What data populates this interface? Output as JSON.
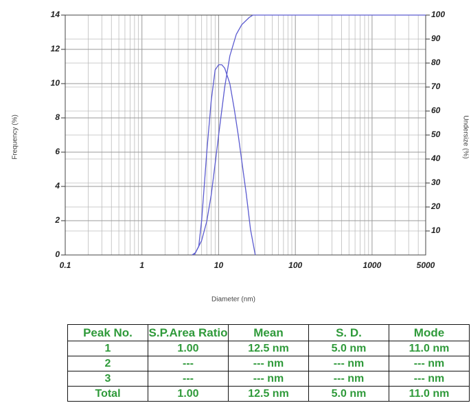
{
  "chart_data": {
    "type": "line",
    "xlabel": "Diameter (nm)",
    "ylabel": "Frequency (%)",
    "y2label": "Undersize (%)",
    "xscale": "log",
    "xlim": [
      0.1,
      5000
    ],
    "xticks": [
      0.1,
      1,
      10,
      100,
      1000,
      5000
    ],
    "ylim": [
      0,
      14
    ],
    "yticks": [
      0,
      2,
      4,
      6,
      8,
      10,
      12,
      14
    ],
    "y2lim": [
      0,
      100
    ],
    "y2ticks": [
      10,
      20,
      30,
      40,
      50,
      60,
      70,
      80,
      90,
      100
    ],
    "grid": true,
    "series": [
      {
        "color": "#5a5ad0",
        "x": [
          4.8,
          5.5,
          6,
          7,
          8,
          9,
          10,
          11,
          12,
          14,
          16,
          18,
          20,
          23,
          26,
          30
        ],
        "values": [
          0,
          0.5,
          2,
          6,
          9,
          10.8,
          11.1,
          11.1,
          10.9,
          10,
          8.5,
          7,
          5.5,
          3.5,
          1.5,
          0
        ]
      },
      {
        "color": "#5a5ad0",
        "axis": "y2",
        "x": [
          4.5,
          5,
          6,
          7,
          8,
          9,
          10,
          12,
          14,
          17,
          20,
          25,
          28,
          5000
        ],
        "values": [
          0,
          1,
          6,
          14,
          25,
          38,
          50,
          70,
          83,
          92,
          96,
          99,
          100,
          100
        ]
      }
    ]
  },
  "table": {
    "header": [
      "Peak No.",
      "S.P.Area Ratio",
      "Mean",
      "S. D.",
      "Mode"
    ],
    "rows": [
      [
        "1",
        "1.00",
        "12.5 nm",
        "5.0 nm",
        "11.0 nm"
      ],
      [
        "2",
        "---",
        "--- nm",
        "--- nm",
        "--- nm"
      ],
      [
        "3",
        "---",
        "--- nm",
        "--- nm",
        "--- nm"
      ],
      [
        "Total",
        "1.00",
        "12.5 nm",
        "5.0 nm",
        "11.0 nm"
      ]
    ]
  }
}
